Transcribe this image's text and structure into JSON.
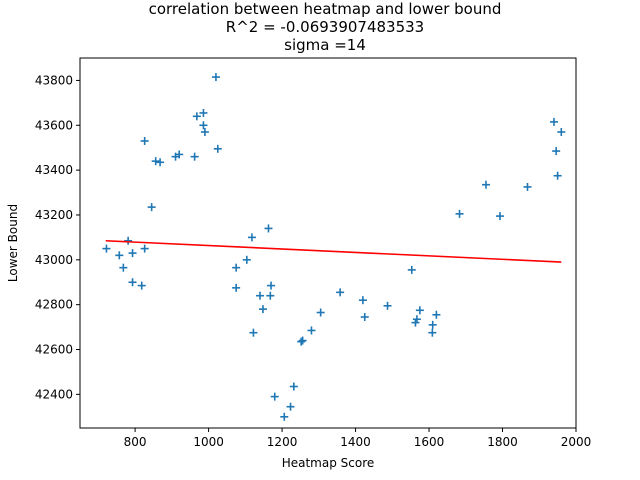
{
  "chart_data": {
    "type": "scatter",
    "title_lines": [
      "correlation between heatmap and lower bound",
      "R^2 = -0.0693907483533",
      "sigma =14"
    ],
    "xlabel": "Heatmap Score",
    "ylabel": "Lower Bound",
    "xlim": [
      650,
      2000
    ],
    "ylim": [
      42250,
      43900
    ],
    "xticks": [
      800,
      1000,
      1200,
      1400,
      1600,
      1800,
      2000
    ],
    "yticks": [
      42400,
      42600,
      42800,
      43000,
      43200,
      43400,
      43600,
      43800
    ],
    "grid": false,
    "colors": {
      "points": "#1f77b4",
      "fit": "#ff0000"
    },
    "series": [
      {
        "kind": "points",
        "marker": "+",
        "x": [
          722,
          757,
          768,
          781,
          793,
          793,
          818,
          826,
          826,
          845,
          856,
          868,
          910,
          920,
          962,
          968,
          986,
          986,
          990,
          1020,
          1025,
          1075,
          1075,
          1104,
          1118,
          1122,
          1140,
          1148,
          1163,
          1168,
          1170,
          1180,
          1206,
          1223,
          1232,
          1252,
          1256,
          1280,
          1305,
          1358,
          1420,
          1425,
          1487,
          1553,
          1563,
          1567,
          1575,
          1609,
          1610,
          1620,
          1683,
          1755,
          1793,
          1868,
          1940,
          1946,
          1950,
          1960
        ],
        "y": [
          43050,
          43020,
          42965,
          43085,
          42900,
          43030,
          42885,
          43050,
          43530,
          43235,
          43440,
          43435,
          43460,
          43470,
          43460,
          43640,
          43600,
          43655,
          43570,
          43815,
          43495,
          42965,
          42875,
          43000,
          43100,
          42675,
          42840,
          42780,
          43140,
          42840,
          42885,
          42390,
          42300,
          42345,
          42435,
          42635,
          42640,
          42685,
          42765,
          42855,
          42820,
          42745,
          42795,
          42955,
          42720,
          42735,
          42775,
          42675,
          42710,
          42755,
          43205,
          43335,
          43195,
          43325,
          43615,
          43485,
          43375,
          43570
        ]
      },
      {
        "kind": "line",
        "x": [
          720,
          1960
        ],
        "y": [
          43085,
          42990
        ]
      }
    ]
  }
}
